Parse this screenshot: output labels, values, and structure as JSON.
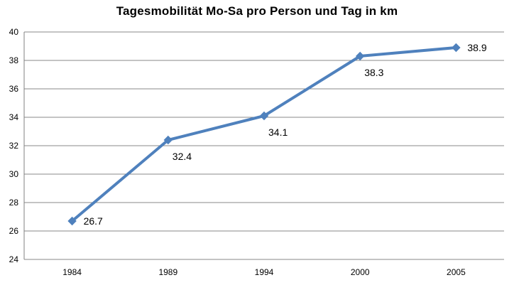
{
  "chart_data": {
    "type": "line",
    "title": "Tagesmobilität Mo-Sa pro Person und Tag in km",
    "categories": [
      "1984",
      "1989",
      "1994",
      "2000",
      "2005"
    ],
    "values": [
      26.7,
      32.4,
      34.1,
      38.3,
      38.9
    ],
    "data_labels": [
      "26.7",
      "32.4",
      "34.1",
      "38.3",
      "38.9"
    ],
    "data_label_positions": [
      "right",
      "below",
      "below",
      "below",
      "right"
    ],
    "xlabel": "",
    "ylabel": "",
    "ylim": [
      24,
      40
    ],
    "ytick_step": 2,
    "grid": "horizontal-major",
    "legend": "none",
    "marker": "diamond"
  },
  "colors": {
    "line": "#4F81BD",
    "marker_fill": "#4F81BD",
    "gridline": "#898989",
    "axis": "#808080",
    "text": "#000000",
    "background": "#FFFFFF"
  }
}
